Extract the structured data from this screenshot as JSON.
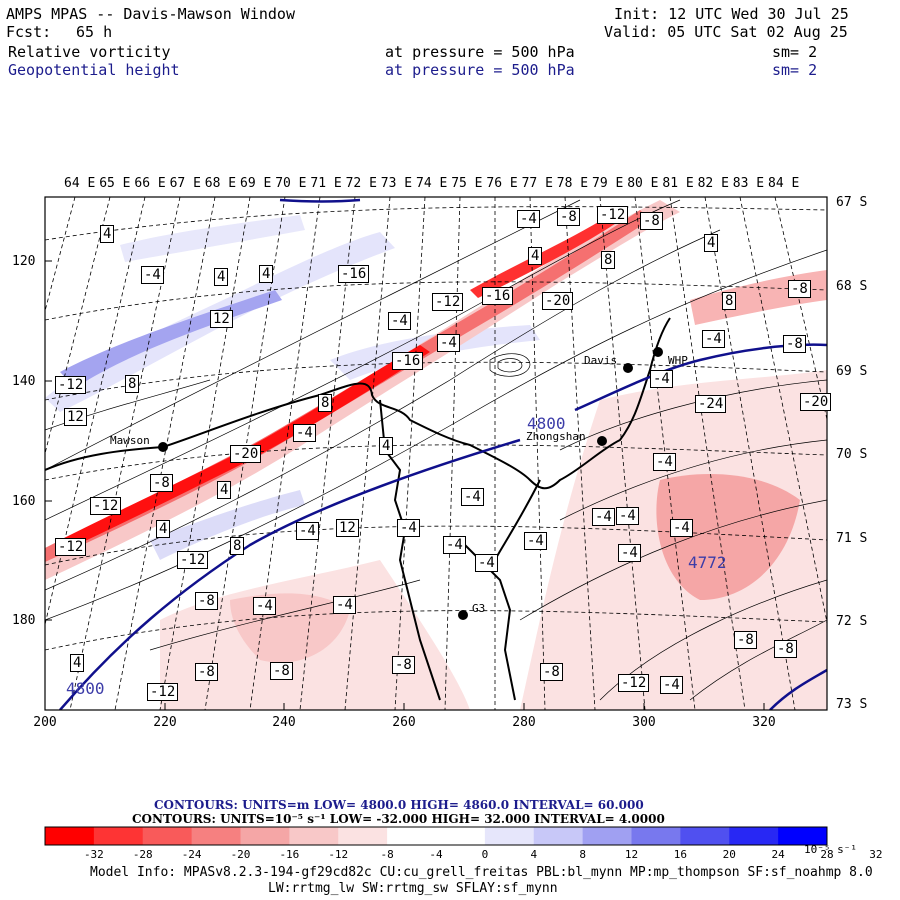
{
  "header": {
    "title": "AMPS MPAS -- Davis-Mawson Window",
    "fcst_label": "Fcst:",
    "fcst_value": "65 h",
    "init": "Init: 12 UTC Wed 30 Jul 25",
    "valid": "Valid: 05 UTC Sat 02 Aug 25",
    "field1_name": "Relative vorticity",
    "field1_level": "at pressure =  500 hPa",
    "field1_sm": "sm= 2",
    "field2_name": "Geopotential height",
    "field2_level": "at pressure =  500 hPa",
    "field2_sm": "sm= 2"
  },
  "map": {
    "top_lon_labels": [
      "64 E",
      "65 E",
      "66 E",
      "67 E",
      "68 E",
      "69 E",
      "70 E",
      "71 E",
      "72 E",
      "73 E",
      "74 E",
      "75 E",
      "76 E",
      "77 E",
      "78 E",
      "79 E",
      "80 E",
      "81 E",
      "82 E",
      "83 E",
      "84 E"
    ],
    "right_lat_labels": [
      "67 S",
      "68 S",
      "69 S",
      "70 S",
      "71 S",
      "72 S",
      "73 S"
    ],
    "left_y_labels": [
      "120",
      "140",
      "160",
      "180"
    ],
    "bottom_x_labels": [
      "200",
      "220",
      "240",
      "260",
      "280",
      "300",
      "320"
    ],
    "stations": [
      {
        "name": "Mawson"
      },
      {
        "name": "Davis"
      },
      {
        "name": "WHP"
      },
      {
        "name": "Zhongshan"
      },
      {
        "name": "G3"
      }
    ],
    "height_labels": [
      "4800",
      "4772",
      "4800"
    ],
    "vort_labels": [
      "4",
      "-4",
      "-4",
      "-8",
      "-12",
      "-8",
      "4",
      "-16",
      "4",
      "4",
      "8",
      "4",
      "-4",
      "-12",
      "12",
      "-16",
      "-20",
      "8",
      "-8",
      "-4",
      "-4",
      "-8",
      "-12",
      "8",
      "-16",
      "12",
      "-4",
      "8",
      "4",
      "-20",
      "-4",
      "-24",
      "-20",
      "-8",
      "4",
      "-12",
      "4",
      "-4",
      "8",
      "-4",
      "-4",
      "-4",
      "-12",
      "12",
      "8",
      "-4",
      "-4",
      "-4",
      "-4",
      "-12",
      "-12",
      "-8",
      "-4",
      "-4",
      "-4",
      "-8",
      "-8",
      "-8",
      "-8",
      "-8",
      "-12",
      "4",
      "-8",
      "-4",
      "-4",
      "-4"
    ]
  },
  "footer": {
    "contour1": "CONTOURS:  UNITS=m  LOW=  4800.0      HIGH=  4860.0      INTERVAL=   60.000",
    "contour2": "CONTOURS:  UNITS=10⁻⁵ s⁻¹  LOW=  -32.000      HIGH=  32.000      INTERVAL=   4.0000",
    "colorbar_colors": [
      "#ff0000",
      "#fe3434",
      "#f95a5a",
      "#f68080",
      "#f5a6a6",
      "#f8c8c8",
      "#fbe2e2",
      "#ffffff",
      "#ffffff",
      "#e6e6fb",
      "#c8c8f8",
      "#a0a0f2",
      "#7878ee",
      "#5050f0",
      "#2828f4",
      "#0000ff"
    ],
    "colorbar_labels": [
      "-32",
      "-28",
      "-24",
      "-20",
      "-16",
      "-12",
      "-8",
      "-4",
      "0",
      "4",
      "8",
      "12",
      "16",
      "20",
      "24",
      "28",
      "32"
    ],
    "colorbar_unit": "10⁻⁵ s⁻¹",
    "model_info": "Model Info: MPASv8.2.3-194-gf29cd82c CU:cu_grell_freitas PBL:bl_mynn MP:mp_thompson SF:sf_noahmp 8.0",
    "model_info2": "LW:rrtmg_lw SW:rrtmg_sw SFLAY:sf_mynn"
  }
}
